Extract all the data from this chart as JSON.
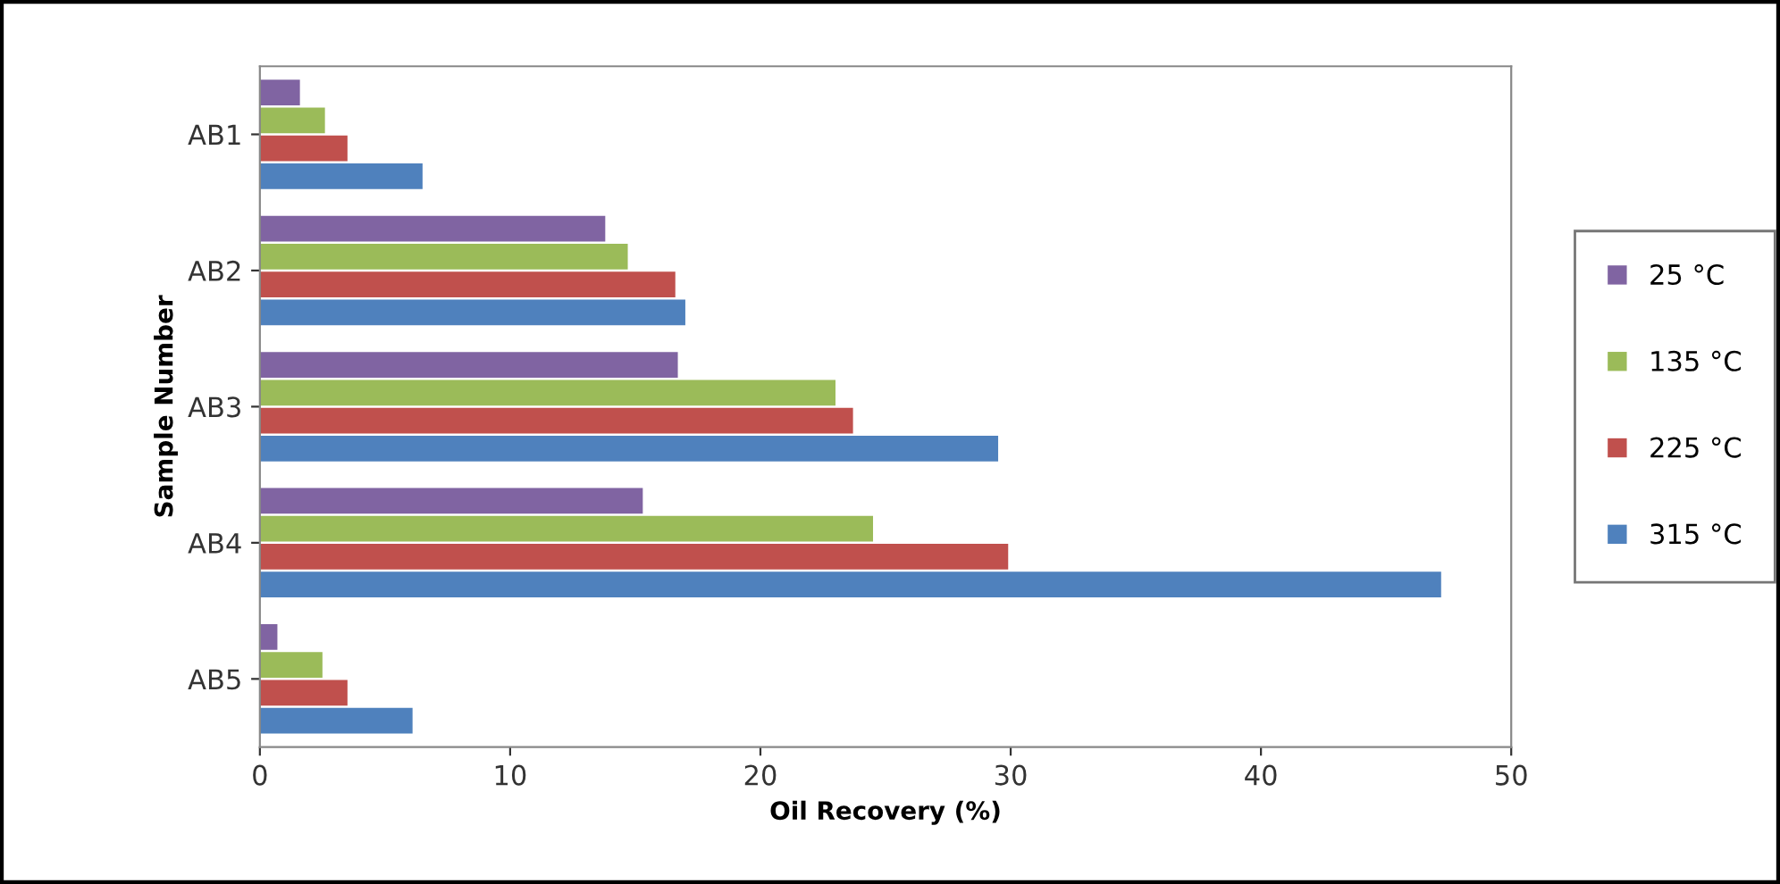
{
  "chart_data": {
    "type": "bar",
    "orientation": "horizontal",
    "xlabel": "Oil Recovery (%)",
    "ylabel": "Sample Number",
    "categories": [
      "AB1",
      "AB2",
      "AB3",
      "AB4",
      "AB5"
    ],
    "series": [
      {
        "name": "25 °C",
        "color": "#8064a2",
        "values": [
          1.6,
          13.8,
          16.7,
          15.3,
          0.7
        ]
      },
      {
        "name": "135 °C",
        "color": "#9bbb59",
        "values": [
          2.6,
          14.7,
          23.0,
          24.5,
          2.5
        ]
      },
      {
        "name": "225 °C",
        "color": "#c0504d",
        "values": [
          3.5,
          16.6,
          23.7,
          29.9,
          3.5
        ]
      },
      {
        "name": "315 °C",
        "color": "#4f81bd",
        "values": [
          6.5,
          17.0,
          29.5,
          47.2,
          6.1
        ]
      }
    ],
    "xlim": [
      0,
      50
    ],
    "xticks": [
      0,
      10,
      20,
      30,
      40,
      50
    ],
    "grid": false,
    "legend": "right"
  }
}
